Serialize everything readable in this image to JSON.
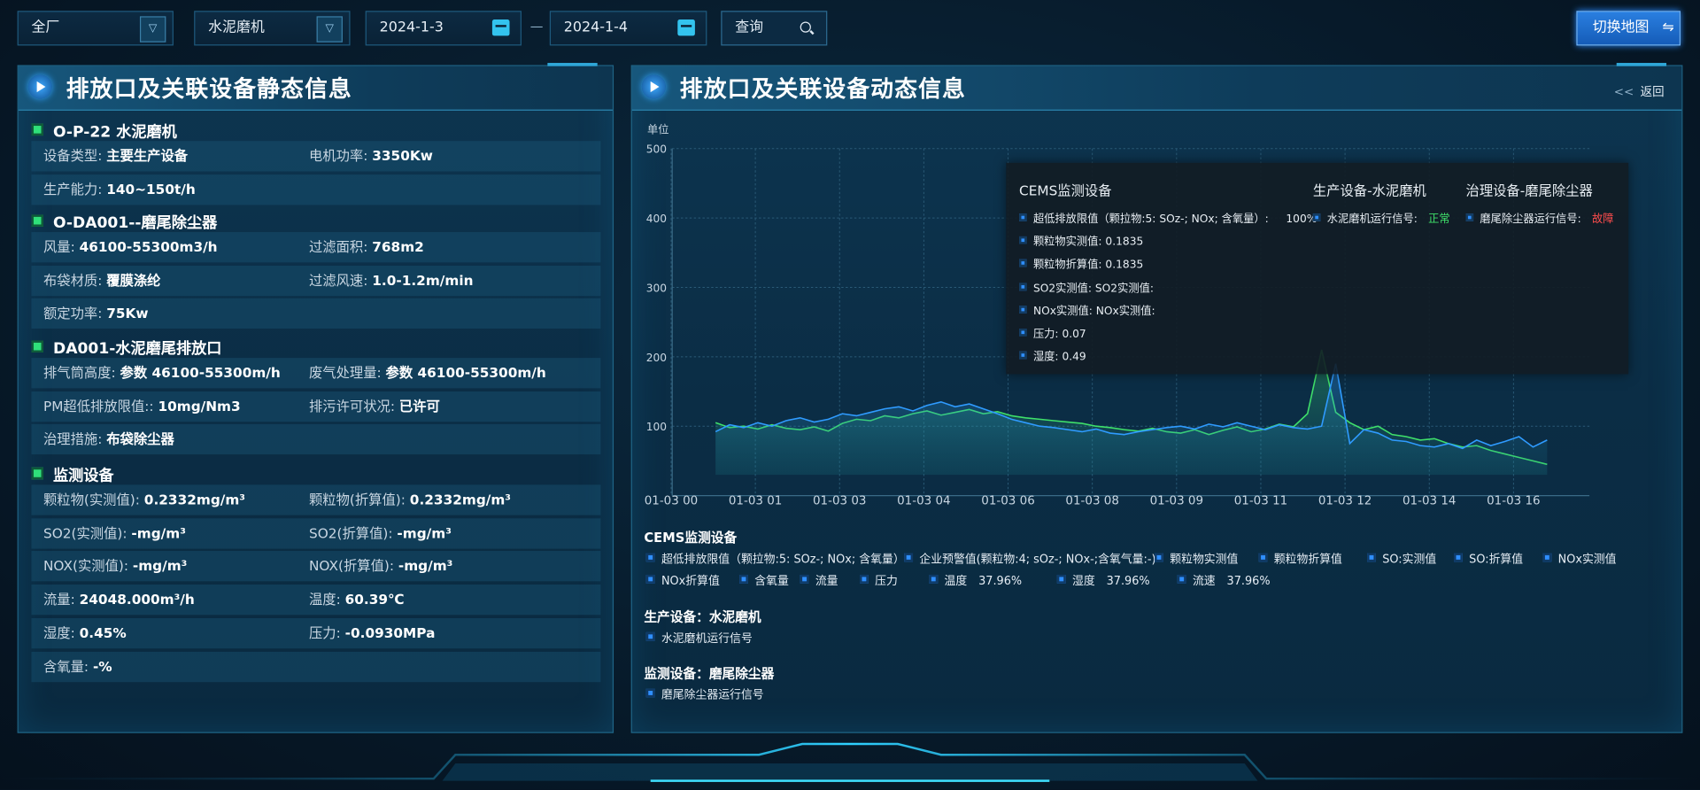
{
  "toolbar": {
    "plant_select": "全厂",
    "equipment_select": "水泥磨机",
    "start_date": "2024-1-3",
    "date_separator": "—",
    "end_date": "2024-1-4",
    "query_label": "查询",
    "switch_map_label": "切换地图",
    "switch_icon": "⇋"
  },
  "left_panel": {
    "title": "排放口及关联设备静态信息",
    "sections": [
      {
        "title": "O-P-22 水泥磨机",
        "rows": [
          [
            {
              "k": "设备类型:",
              "v": "主要生产设备"
            },
            {
              "k": "电机功率:",
              "v": "3350Kw"
            }
          ],
          [
            {
              "k": "生产能力:",
              "v": "140~150t/h"
            }
          ]
        ]
      },
      {
        "title": "O-DA001--磨尾除尘器",
        "rows": [
          [
            {
              "k": "风量:",
              "v": "46100-55300m3/h"
            },
            {
              "k": "过滤面积:",
              "v": "768m2"
            }
          ],
          [
            {
              "k": "布袋材质:",
              "v": "覆膜涤纶"
            },
            {
              "k": "过滤风速:",
              "v": "1.0-1.2m/min"
            }
          ],
          [
            {
              "k": "额定功率:",
              "v": "75Kw"
            }
          ]
        ]
      },
      {
        "title": "DA001-水泥磨尾排放口",
        "rows": [
          [
            {
              "k": "排气筒高度:",
              "v": "参数 46100-55300m/h"
            },
            {
              "k": "废气处理量:",
              "v": "参数 46100-55300m/h"
            }
          ],
          [
            {
              "k": "PM超低排放限值::",
              "v": "10mg/Nm3"
            },
            {
              "k": "排污许可状况:",
              "v": "已许可"
            }
          ],
          [
            {
              "k": "治理措施:",
              "v": "布袋除尘器"
            }
          ]
        ]
      },
      {
        "title": "监测设备",
        "rows": [
          [
            {
              "k": "颗粒物(实测值):",
              "v": "0.2332mg/m³"
            },
            {
              "k": "颗粒物(折算值):",
              "v": "0.2332mg/m³"
            }
          ],
          [
            {
              "k": "SO2(实测值):",
              "v": "-mg/m³"
            },
            {
              "k": "SO2(折算值):",
              "v": "-mg/m³"
            }
          ],
          [
            {
              "k": "NOX(实测值):",
              "v": "-mg/m³"
            },
            {
              "k": "NOX(折算值):",
              "v": "-mg/m³"
            }
          ],
          [
            {
              "k": "流量:",
              "v": "24048.000m³/h"
            },
            {
              "k": "温度:",
              "v": "60.39℃"
            }
          ],
          [
            {
              "k": "湿度:",
              "v": "0.45%"
            },
            {
              "k": "压力:",
              "v": "-0.0930MPa"
            }
          ],
          [
            {
              "k": "含氧量:",
              "v": "-%"
            }
          ]
        ]
      }
    ]
  },
  "right_panel": {
    "title": "排放口及关联设备动态信息",
    "back_icon": "<<",
    "back_label": "返回"
  },
  "chart_data": {
    "type": "area",
    "ylabel": "单位",
    "ylim": [
      0,
      500
    ],
    "yticks": [
      "100",
      "200",
      "300",
      "400",
      "500"
    ],
    "xticks": [
      "01-03 00",
      "01-03 01",
      "01-03 03",
      "01-03 04",
      "01-03 06",
      "01-03 08",
      "01-03 09",
      "01-03 11",
      "01-03 12",
      "01-03 14",
      "01-03 16"
    ],
    "grid": true,
    "colors": [
      "#3fe06a",
      "#2f9bff"
    ],
    "series": [
      {
        "values": [
          105,
          98,
          100,
          96,
          102,
          97,
          95,
          99,
          93,
          104,
          110,
          108,
          115,
          112,
          118,
          122,
          116,
          120,
          124,
          118,
          121,
          115,
          112,
          110,
          108,
          106,
          104,
          100,
          98,
          95,
          93,
          97,
          92,
          90,
          95,
          88,
          94,
          99,
          92,
          96,
          103,
          99,
          118,
          210,
          120,
          105,
          95,
          100,
          88,
          85,
          80,
          82,
          75,
          70,
          72,
          65,
          60,
          55,
          50,
          45
        ]
      },
      {
        "values": [
          92,
          102,
          98,
          105,
          100,
          108,
          112,
          106,
          110,
          118,
          115,
          120,
          125,
          128,
          122,
          130,
          135,
          128,
          132,
          125,
          118,
          110,
          105,
          100,
          98,
          95,
          92,
          96,
          90,
          88,
          92,
          95,
          98,
          100,
          96,
          103,
          99,
          105,
          100,
          95,
          102,
          98,
          96,
          100,
          190,
          75,
          95,
          90,
          80,
          78,
          72,
          70,
          75,
          68,
          80,
          72,
          78,
          85,
          70,
          80
        ]
      }
    ]
  },
  "tooltip": {
    "groups": [
      {
        "title": "CEMS监测设备",
        "items": [
          {
            "label": "超低排放限值（颗拉物:5: SOz-; NOx; 含氧量）:",
            "value": "100%"
          },
          {
            "label": "颗粒物实测值: 0.1835",
            "value": ""
          },
          {
            "label": "颗粒物折算值: 0.1835",
            "value": ""
          },
          {
            "label": "SO2实测值: SO2实测值:",
            "value": ""
          },
          {
            "label": "NOx实测值: NOx实测值:",
            "value": ""
          },
          {
            "label": "压力: 0.07",
            "value": ""
          },
          {
            "label": "湿度: 0.49",
            "value": ""
          }
        ]
      },
      {
        "title": "生产设备-水泥磨机",
        "items": [
          {
            "label": "水泥磨机运行信号:",
            "value": "正常",
            "color": "#3fe06a"
          }
        ]
      },
      {
        "title": "治理设备-磨尾除尘器",
        "items": [
          {
            "label": "磨尾除尘器运行信号:",
            "value": "故障",
            "color": "#ff4d4d"
          }
        ]
      }
    ]
  },
  "legend": {
    "cems_title": "CEMS监测设备",
    "cems_items": [
      "超低排放限值（颗拉物:5: SOz-; NOx; 含氧量）",
      "企业预警值(颗粒物:4; sOz-; NOx-;含氧气量:-)",
      "颗粒物实测值",
      "颗粒物折算值",
      "SO:实测值",
      "SO:折算值",
      "NOx实测值",
      "NOx折算值",
      "含氧量",
      "流量",
      "压力",
      "温度　37.96%",
      "湿度　37.96%",
      "流速　37.96%"
    ],
    "production_title": "生产设备：水泥磨机",
    "production_items": [
      "水泥磨机运行信号"
    ],
    "monitor_title": "监测设备：磨尾除尘器",
    "monitor_items": [
      "磨尾除尘器运行信号"
    ]
  }
}
